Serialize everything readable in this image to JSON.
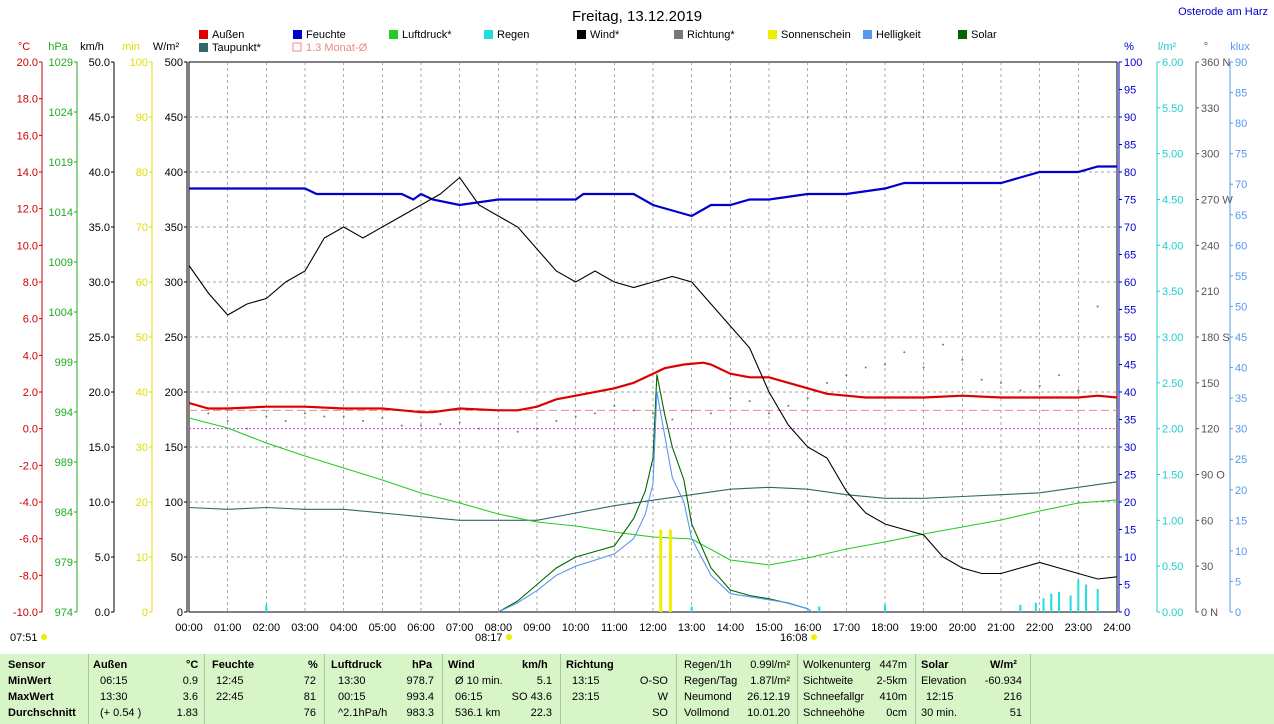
{
  "header": {
    "title": "Freitag, 13.12.2019",
    "location": "Osterode am Harz"
  },
  "legend": [
    {
      "label": "Außen",
      "color": "#dd0000",
      "kind": "box"
    },
    {
      "label": "Feuchte",
      "color": "#0000cc",
      "kind": "box"
    },
    {
      "label": "Luftdruck*",
      "color": "#22cc22",
      "kind": "box"
    },
    {
      "label": "Regen",
      "color": "#22dddd",
      "kind": "box"
    },
    {
      "label": "Wind*",
      "color": "#000000",
      "kind": "box"
    },
    {
      "label": "Richtung*",
      "color": "#777777",
      "kind": "box"
    },
    {
      "label": "Sonnenschein",
      "color": "#eeee00",
      "kind": "box"
    },
    {
      "label": "Helligkeit",
      "color": "#5599ee",
      "kind": "box"
    },
    {
      "label": "Solar",
      "color": "#006600",
      "kind": "box"
    },
    {
      "label": "Taupunkt*",
      "color": "#336666",
      "kind": "box"
    },
    {
      "label": "1.3 Monat-Ø",
      "color": "#ee8888",
      "kind": "outline"
    }
  ],
  "axis_units": {
    "temp": "°C",
    "hpa": "hPa",
    "kmh": "km/h",
    "min": "min",
    "wm2": "W/m²",
    "pct": "%",
    "lm2": "l/m²",
    "deg": "°",
    "klux": "klux"
  },
  "axes": {
    "temp": [
      "20.0",
      "18.0",
      "16.0",
      "14.0",
      "12.0",
      "10.0",
      "8.0",
      "6.0",
      "4.0",
      "2.0",
      "0.0",
      "-2.0",
      "-4.0",
      "-6.0",
      "-8.0",
      "-10.0"
    ],
    "hpa": [
      "1029",
      "1024",
      "1019",
      "1014",
      "1009",
      "1004",
      "999",
      "994",
      "989",
      "984",
      "979",
      "974"
    ],
    "kmh": [
      "50.0",
      "45.0",
      "40.0",
      "35.0",
      "30.0",
      "25.0",
      "20.0",
      "15.0",
      "10.0",
      "5.0",
      "0.0"
    ],
    "min": [
      "100",
      "90",
      "80",
      "70",
      "60",
      "50",
      "40",
      "30",
      "20",
      "10",
      "0"
    ],
    "wm2": [
      "500",
      "450",
      "400",
      "350",
      "300",
      "250",
      "200",
      "150",
      "100",
      "50",
      "0"
    ],
    "pct": [
      "100",
      "95",
      "90",
      "85",
      "80",
      "75",
      "70",
      "65",
      "60",
      "55",
      "50",
      "45",
      "40",
      "35",
      "30",
      "25",
      "20",
      "15",
      "10",
      "5",
      "0"
    ],
    "lm2": [
      "6.00",
      "5.50",
      "5.00",
      "4.50",
      "4.00",
      "3.50",
      "3.00",
      "2.50",
      "2.00",
      "1.50",
      "1.00",
      "0.50",
      "0.00"
    ],
    "deg": [
      "360 N",
      "330",
      "300",
      "270 W",
      "240",
      "210",
      "180 S",
      "150",
      "120",
      "90 O",
      "60",
      "30",
      "0 N"
    ],
    "klux": [
      "90",
      "85",
      "80",
      "75",
      "70",
      "65",
      "60",
      "55",
      "50",
      "45",
      "40",
      "35",
      "30",
      "25",
      "20",
      "15",
      "10",
      "5",
      "0"
    ],
    "time": [
      "00:00",
      "01:00",
      "02:00",
      "03:00",
      "04:00",
      "05:00",
      "06:00",
      "07:00",
      "08:00",
      "09:00",
      "10:00",
      "11:00",
      "12:00",
      "13:00",
      "14:00",
      "15:00",
      "16:00",
      "17:00",
      "18:00",
      "19:00",
      "20:00",
      "21:00",
      "22:00",
      "23:00",
      "24:00"
    ]
  },
  "sun": {
    "sunrise": "07:51",
    "daylight_start": "08:17",
    "daylight_end": "16:08"
  },
  "chart_data": {
    "type": "line",
    "title": "Freitag, 13.12.2019",
    "x_unit": "hours",
    "xlim": [
      0,
      24
    ],
    "series": [
      {
        "name": "Außen",
        "unit": "°C",
        "color": "#dd0000",
        "ylim": [
          -10,
          20
        ],
        "x": [
          0,
          0.5,
          1,
          2,
          3,
          4,
          5,
          5.5,
          6,
          6.3,
          7,
          8,
          8.5,
          9,
          9.5,
          10,
          11,
          11.5,
          12,
          12.3,
          12.8,
          13.3,
          13.5,
          14,
          14.5,
          15,
          15.5,
          16,
          16.5,
          17,
          17.5,
          18,
          19,
          20,
          21,
          22,
          23,
          23.5,
          24
        ],
        "y": [
          1.4,
          1.1,
          1.1,
          1.2,
          1.2,
          1.1,
          1.1,
          1.0,
          0.9,
          0.9,
          1.1,
          1.0,
          1.0,
          1.2,
          1.6,
          1.8,
          2.2,
          2.5,
          3.0,
          3.3,
          3.5,
          3.6,
          3.5,
          3.0,
          2.8,
          2.8,
          2.5,
          2.2,
          1.9,
          1.8,
          1.7,
          1.7,
          1.7,
          1.8,
          1.7,
          1.7,
          1.7,
          1.8,
          1.7
        ]
      },
      {
        "name": "Taupunkt*",
        "unit": "°C",
        "color": "#336666",
        "ylim": [
          -10,
          20
        ],
        "x": [
          0,
          1,
          2,
          3,
          4,
          5,
          6,
          7,
          8,
          9,
          10,
          11,
          12,
          13,
          14,
          15,
          16,
          17,
          18,
          19,
          20,
          21,
          22,
          23,
          24
        ],
        "y": [
          -4.3,
          -4.4,
          -4.3,
          -4.4,
          -4.4,
          -4.6,
          -4.8,
          -5.0,
          -5.0,
          -5.0,
          -4.6,
          -4.2,
          -3.9,
          -3.6,
          -3.3,
          -3.2,
          -3.3,
          -3.6,
          -3.8,
          -3.8,
          -3.7,
          -3.6,
          -3.5,
          -3.2,
          -2.9
        ]
      },
      {
        "name": "Feuchte",
        "unit": "%",
        "color": "#0000cc",
        "ylim": [
          0,
          100
        ],
        "x": [
          0,
          3,
          3.3,
          5.5,
          5.8,
          6,
          6.3,
          7,
          8,
          10,
          10.2,
          11.5,
          12,
          12.5,
          13,
          13.5,
          14,
          14.5,
          15,
          16,
          17,
          18,
          18.5,
          19,
          20,
          21,
          21.5,
          22,
          22.5,
          23,
          23.5,
          24
        ],
        "y": [
          77,
          77,
          76,
          76,
          75,
          76,
          75,
          74,
          75,
          75,
          76,
          76,
          74,
          73,
          72,
          74,
          74,
          75,
          75,
          76,
          76,
          77,
          78,
          78,
          78,
          78,
          79,
          80,
          80,
          80,
          81,
          81
        ]
      },
      {
        "name": "Luftdruck*",
        "unit": "hPa",
        "color": "#22cc22",
        "ylim": [
          974,
          1029
        ],
        "x": [
          0,
          1,
          2,
          3,
          4,
          5,
          6,
          7,
          8,
          9,
          10,
          11,
          12,
          13,
          14,
          15,
          16,
          17,
          18,
          19,
          20,
          21,
          22,
          23,
          24
        ],
        "y": [
          993.4,
          992.4,
          990.9,
          989.6,
          988.4,
          987.2,
          985.9,
          984.9,
          983.8,
          983.0,
          982.6,
          982.0,
          981.5,
          981.3,
          979.2,
          978.7,
          979.4,
          980.3,
          981.0,
          981.8,
          982.5,
          983.2,
          984.1,
          984.9,
          985.2
        ]
      },
      {
        "name": "Wind*",
        "unit": "km/h",
        "color": "#000000",
        "ylim": [
          0,
          50
        ],
        "x": [
          0,
          0.5,
          1,
          1.5,
          2,
          2.5,
          3,
          3.5,
          4,
          4.5,
          5,
          5.5,
          6,
          6.5,
          7,
          7.5,
          8,
          8.5,
          9,
          9.5,
          10,
          10.5,
          11,
          11.5,
          12,
          12.5,
          13,
          13.5,
          14,
          14.5,
          15,
          15.5,
          16,
          16.5,
          17,
          17.5,
          18,
          18.5,
          19,
          19.5,
          20,
          20.5,
          21,
          21.5,
          22,
          22.5,
          23,
          23.5,
          24
        ],
        "y": [
          31.5,
          29,
          27,
          28,
          28.5,
          30,
          31,
          34,
          35,
          34,
          35,
          36,
          37,
          38,
          39.5,
          37,
          36,
          35,
          33,
          31,
          30,
          31,
          30,
          29.5,
          30,
          30.5,
          30,
          28,
          26,
          24,
          20,
          17,
          15,
          14,
          11,
          9,
          8,
          7.5,
          7,
          5,
          4,
          3.5,
          3.5,
          4,
          4.5,
          4,
          3.5,
          3,
          3.2
        ]
      },
      {
        "name": "Solar",
        "unit": "W/m²",
        "color": "#006600",
        "ylim": [
          0,
          500
        ],
        "x": [
          8,
          8.5,
          9,
          9.5,
          10,
          10.5,
          11,
          11.5,
          11.8,
          12,
          12.1,
          12.3,
          12.5,
          12.8,
          13,
          13.5,
          14,
          14.5,
          15,
          15.5,
          16,
          16.1
        ],
        "y": [
          0,
          10,
          25,
          40,
          50,
          55,
          60,
          85,
          110,
          140,
          216,
          180,
          150,
          120,
          80,
          40,
          20,
          15,
          12,
          8,
          3,
          0
        ]
      },
      {
        "name": "Helligkeit",
        "unit": "klux",
        "color": "#5599ee",
        "ylim": [
          0,
          90
        ],
        "x": [
          8,
          8.5,
          9,
          9.5,
          10,
          10.5,
          11,
          11.5,
          11.8,
          12,
          12.1,
          12.3,
          12.5,
          12.8,
          13,
          13.5,
          14,
          14.5,
          15,
          15.5,
          16,
          16.1
        ],
        "y": [
          0,
          1.5,
          3.5,
          6,
          7.5,
          8.5,
          9.5,
          12,
          16,
          21,
          36,
          29,
          22,
          18,
          12,
          6,
          3,
          2.5,
          2,
          1.5,
          0.5,
          0
        ]
      },
      {
        "name": "Richtung*",
        "unit": "°",
        "color": "#777777",
        "kind": "dots",
        "ylim": [
          0,
          360
        ],
        "x": [
          0.5,
          1,
          1.5,
          2,
          2.5,
          3,
          3.5,
          4,
          4.5,
          5,
          5.5,
          6,
          6.5,
          7,
          7.5,
          8,
          8.5,
          9,
          9.5,
          10,
          10.5,
          11,
          11.5,
          12,
          12.5,
          13,
          13.5,
          14,
          14.5,
          15,
          15.5,
          16,
          16.5,
          17,
          17.5,
          18,
          18.5,
          19,
          19.5,
          20,
          20.5,
          21,
          21.5,
          22,
          22.5,
          23,
          23.5
        ],
        "y": [
          130,
          125,
          120,
          128,
          125,
          130,
          128,
          128,
          125,
          127,
          122,
          122,
          123,
          124,
          120,
          120,
          118,
          120,
          125,
          128,
          130,
          135,
          132,
          130,
          126,
          132,
          130,
          140,
          138,
          130,
          135,
          140,
          150,
          155,
          160,
          162,
          170,
          160,
          175,
          165,
          152,
          150,
          145,
          148,
          155,
          145,
          200
        ]
      },
      {
        "name": "Regen",
        "unit": "l/m²",
        "color": "#22dddd",
        "kind": "bars",
        "ylim": [
          0,
          6
        ],
        "x": [
          2,
          12.2,
          13,
          16.3,
          18,
          21.5,
          21.9,
          22.1,
          22.3,
          22.5,
          22.8,
          23,
          23.2,
          23.5
        ],
        "y": [
          0.08,
          0.08,
          0.06,
          0.06,
          0.08,
          0.08,
          0.1,
          0.15,
          0.2,
          0.22,
          0.18,
          0.35,
          0.3,
          0.25
        ]
      },
      {
        "name": "Sonnenschein",
        "unit": "min",
        "color": "#eeee00",
        "kind": "bars",
        "ylim": [
          0,
          100
        ],
        "x": [
          12.2,
          12.45
        ],
        "y": [
          15,
          15
        ]
      }
    ],
    "reference_lines": [
      {
        "name": "1.3 Monat-Ø",
        "unit": "°C",
        "value": 1.0,
        "color": "#ee8888",
        "style": "dashed"
      },
      {
        "name": "freezing",
        "unit": "°C",
        "value": 0,
        "color": "#cc44cc",
        "style": "dotted"
      }
    ]
  },
  "stats": {
    "headers": {
      "sensor": "Sensor",
      "aussen": "Außen",
      "aussen_u": "°C",
      "feuchte": "Feuchte",
      "feuchte_u": "%",
      "druck": "Luftdruck",
      "druck_u": "hPa",
      "wind": "Wind",
      "wind_u": "km/h",
      "richtung": "Richtung"
    },
    "rows": [
      {
        "label": "MinWert",
        "aussen_t": "06:15",
        "aussen_v": "0.9",
        "feuchte_t": "12:45",
        "feuchte_v": "72",
        "druck_t": "13:30",
        "druck_v": "978.7",
        "wind_t": "Ø 10 min.",
        "wind_v": "5.1",
        "richt_t": "13:15",
        "richt_v": "O-SO"
      },
      {
        "label": "MaxWert",
        "aussen_t": "13:30",
        "aussen_v": "3.6",
        "feuchte_t": "22:45",
        "feuchte_v": "81",
        "druck_t": "00:15",
        "druck_v": "993.4",
        "wind_t": "06:15",
        "wind_v": "SO 43.6",
        "richt_t": "23:15",
        "richt_v": "W"
      },
      {
        "label": "Durchschnitt",
        "aussen_t": "(+ 0.54 )",
        "aussen_v": "1.83",
        "feuchte_t": "",
        "feuchte_v": "76",
        "druck_t": "^2.1hPa/h",
        "druck_v": "983.3",
        "wind_t": "536.1 km",
        "wind_v": "22.3",
        "richt_t": "",
        "richt_v": "SO"
      }
    ],
    "extra": [
      {
        "k": "Regen/1h",
        "v": "0.99l/m²"
      },
      {
        "k": "Regen/Tag",
        "v": "1.87l/m²"
      },
      {
        "k": "Neumond",
        "v": "26.12.19"
      },
      {
        "k": "Vollmond",
        "v": "10.01.20"
      }
    ],
    "extra2": [
      {
        "k": "Wolkenunterg",
        "v": "447m"
      },
      {
        "k": "Sichtweite",
        "v": "2-5km"
      },
      {
        "k": "Schneefallgr",
        "v": "410m"
      },
      {
        "k": "Schneehöhe",
        "v": "0cm"
      }
    ],
    "solar": {
      "title": "Solar",
      "unit": "W/m²",
      "rows": [
        {
          "k": "Elevation",
          "v": "-60.934"
        },
        {
          "k": "12:15",
          "v": "216"
        },
        {
          "k": "30 min.",
          "v": "51"
        }
      ]
    }
  }
}
